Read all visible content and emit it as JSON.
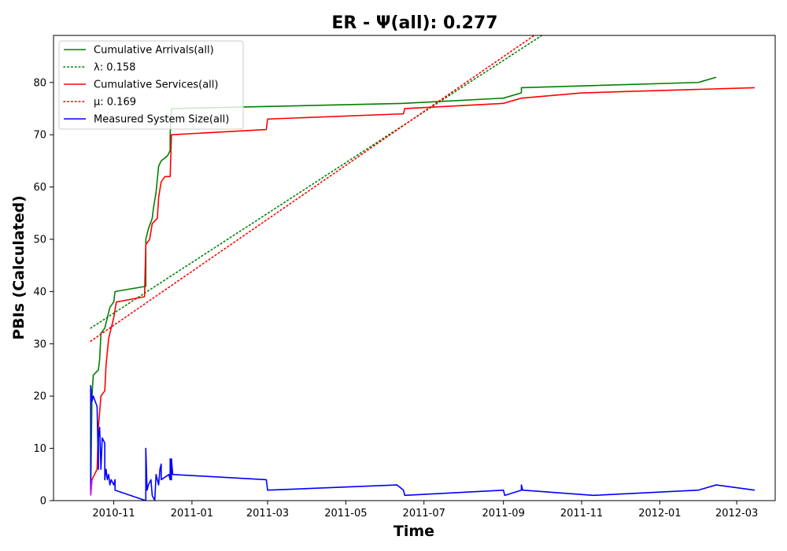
{
  "chart_data": {
    "type": "line",
    "title": "ER -  Ψ(all): 0.277",
    "xlabel": "Time",
    "ylabel": "PBIs (Calculated)",
    "x_ticks": [
      "2010-11",
      "2011-01",
      "2011-03",
      "2011-05",
      "2011-07",
      "2011-09",
      "2011-11",
      "2012-01",
      "2012-03"
    ],
    "y_ticks": [
      0,
      10,
      20,
      30,
      40,
      50,
      60,
      70,
      80
    ],
    "xlim": [
      "2010-09-15",
      "2012-03-31"
    ],
    "ylim": [
      0,
      89
    ],
    "grid": false,
    "legend_position": "top-left",
    "series": [
      {
        "name": "Cumulative Arrivals(all)",
        "style": "solid",
        "color": "#008000",
        "points": [
          [
            "2010-10-14",
            1
          ],
          [
            "2010-10-15",
            20
          ],
          [
            "2010-10-16",
            24
          ],
          [
            "2010-10-20",
            25
          ],
          [
            "2010-10-21",
            27
          ],
          [
            "2010-10-22",
            32
          ],
          [
            "2010-10-25",
            33
          ],
          [
            "2010-10-27",
            35
          ],
          [
            "2010-10-29",
            37
          ],
          [
            "2010-11-01",
            38
          ],
          [
            "2010-11-02",
            40
          ],
          [
            "2010-11-26",
            41
          ],
          [
            "2010-11-26",
            50
          ],
          [
            "2010-11-28",
            52
          ],
          [
            "2010-12-01",
            54
          ],
          [
            "2010-12-02",
            56
          ],
          [
            "2010-12-04",
            59
          ],
          [
            "2010-12-06",
            64
          ],
          [
            "2010-12-08",
            65
          ],
          [
            "2010-12-13",
            66
          ],
          [
            "2010-12-15",
            67
          ],
          [
            "2010-12-15",
            70
          ],
          [
            "2010-12-16",
            75
          ],
          [
            "2011-06-15",
            76
          ],
          [
            "2011-09-01",
            77
          ],
          [
            "2011-09-15",
            78
          ],
          [
            "2011-09-15",
            79
          ],
          [
            "2012-01-31",
            80
          ],
          [
            "2012-02-14",
            81
          ]
        ]
      },
      {
        "name": "λ: 0.158",
        "style": "dotted",
        "color": "#008000",
        "points": [
          [
            "2010-10-14",
            33
          ],
          [
            "2011-10-01",
            89
          ]
        ]
      },
      {
        "name": "Cumulative Services(all)",
        "style": "solid",
        "color": "#ff0000",
        "points": [
          [
            "2010-10-14",
            1
          ],
          [
            "2010-10-15",
            4
          ],
          [
            "2010-10-19",
            6
          ],
          [
            "2010-10-20",
            14
          ],
          [
            "2010-10-22",
            20
          ],
          [
            "2010-10-25",
            21
          ],
          [
            "2010-10-26",
            26
          ],
          [
            "2010-10-28",
            31
          ],
          [
            "2010-10-30",
            33
          ],
          [
            "2010-11-01",
            35
          ],
          [
            "2010-11-03",
            38
          ],
          [
            "2010-11-25",
            39
          ],
          [
            "2010-11-26",
            49
          ],
          [
            "2010-11-29",
            50
          ],
          [
            "2010-12-01",
            53
          ],
          [
            "2010-12-05",
            54
          ],
          [
            "2010-12-06",
            58
          ],
          [
            "2010-12-08",
            61
          ],
          [
            "2010-12-11",
            62
          ],
          [
            "2010-12-15",
            62
          ],
          [
            "2010-12-16",
            70
          ],
          [
            "2011-02-28",
            71
          ],
          [
            "2011-03-01",
            73
          ],
          [
            "2011-06-15",
            74
          ],
          [
            "2011-06-16",
            75
          ],
          [
            "2011-09-01",
            76
          ],
          [
            "2011-09-15",
            77
          ],
          [
            "2011-11-01",
            78
          ],
          [
            "2012-03-15",
            79
          ]
        ]
      },
      {
        "name": "μ: 0.169",
        "style": "dotted",
        "color": "#ff0000",
        "points": [
          [
            "2010-10-14",
            30.5
          ],
          [
            "2011-09-25",
            89
          ]
        ]
      },
      {
        "name": "Measured System Size(all)",
        "style": "solid",
        "color": "#0000ff",
        "points": [
          [
            "2010-10-14",
            1
          ],
          [
            "2010-10-14",
            22
          ],
          [
            "2010-10-15",
            19
          ],
          [
            "2010-10-16",
            20
          ],
          [
            "2010-10-19",
            18
          ],
          [
            "2010-10-20",
            6
          ],
          [
            "2010-10-20",
            12
          ],
          [
            "2010-10-21",
            14
          ],
          [
            "2010-10-22",
            6
          ],
          [
            "2010-10-23",
            12
          ],
          [
            "2010-10-25",
            11
          ],
          [
            "2010-10-25",
            4
          ],
          [
            "2010-10-26",
            6
          ],
          [
            "2010-10-27",
            4
          ],
          [
            "2010-10-28",
            5
          ],
          [
            "2010-10-29",
            3
          ],
          [
            "2010-10-30",
            4
          ],
          [
            "2010-11-01",
            3
          ],
          [
            "2010-11-02",
            4
          ],
          [
            "2010-11-02",
            2
          ],
          [
            "2010-11-26",
            0
          ],
          [
            "2010-11-26",
            10
          ],
          [
            "2010-11-27",
            2
          ],
          [
            "2010-11-28",
            3
          ],
          [
            "2010-11-30",
            4
          ],
          [
            "2010-12-01",
            1
          ],
          [
            "2010-12-03",
            0
          ],
          [
            "2010-12-04",
            5
          ],
          [
            "2010-12-05",
            4
          ],
          [
            "2010-12-06",
            3
          ],
          [
            "2010-12-07",
            6
          ],
          [
            "2010-12-08",
            7
          ],
          [
            "2010-12-08",
            4
          ],
          [
            "2010-12-14",
            5
          ],
          [
            "2010-12-15",
            4
          ],
          [
            "2010-12-15",
            8
          ],
          [
            "2010-12-16",
            4
          ],
          [
            "2010-12-16",
            8
          ],
          [
            "2010-12-17",
            5
          ],
          [
            "2011-02-28",
            4
          ],
          [
            "2011-03-01",
            2
          ],
          [
            "2011-06-10",
            3
          ],
          [
            "2011-06-15",
            2
          ],
          [
            "2011-06-16",
            1
          ],
          [
            "2011-09-01",
            2
          ],
          [
            "2011-09-02",
            1
          ],
          [
            "2011-09-15",
            2
          ],
          [
            "2011-09-15",
            3
          ],
          [
            "2011-09-16",
            2
          ],
          [
            "2011-11-10",
            1
          ],
          [
            "2012-01-31",
            2
          ],
          [
            "2012-02-14",
            3
          ],
          [
            "2012-03-15",
            2
          ]
        ]
      },
      {
        "name": "",
        "style": "solid",
        "color": "#ff00ff",
        "points": [
          [
            "2010-10-14",
            1
          ],
          [
            "2010-10-15",
            4
          ]
        ]
      }
    ]
  }
}
